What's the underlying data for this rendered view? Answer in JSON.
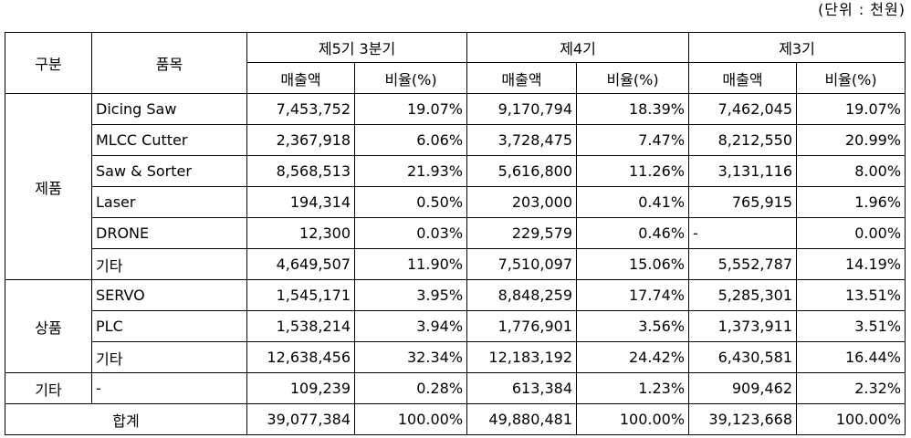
{
  "unit_note": "(단위 : 천원)",
  "headers": {
    "category": "구분",
    "item": "품목",
    "periods": [
      "제5기 3분기",
      "제4기",
      "제3기"
    ],
    "sales": "매출액",
    "ratio": "비율(%)"
  },
  "groups": [
    {
      "name": "제품",
      "rows": [
        {
          "item": "Dicing Saw",
          "cells": [
            "7,453,752",
            "19.07%",
            "9,170,794",
            "18.39%",
            "7,462,045",
            "19.07%"
          ]
        },
        {
          "item": "MLCC Cutter",
          "cells": [
            "2,367,918",
            "6.06%",
            "3,728,475",
            "7.47%",
            "8,212,550",
            "20.99%"
          ]
        },
        {
          "item": "Saw & Sorter",
          "cells": [
            "8,568,513",
            "21.93%",
            "5,616,800",
            "11.26%",
            "3,131,116",
            "8.00%"
          ]
        },
        {
          "item": "Laser",
          "cells": [
            "194,314",
            "0.50%",
            "203,000",
            "0.41%",
            "765,915",
            "1.96%"
          ]
        },
        {
          "item": "DRONE",
          "cells": [
            "12,300",
            "0.03%",
            "229,579",
            "0.46%",
            "-",
            "0.00%"
          ]
        },
        {
          "item": "기타",
          "cells": [
            "4,649,507",
            "11.90%",
            "7,510,097",
            "15.06%",
            "5,552,787",
            "14.19%"
          ]
        }
      ]
    },
    {
      "name": "상품",
      "rows": [
        {
          "item": "SERVO",
          "cells": [
            "1,545,171",
            "3.95%",
            "8,848,259",
            "17.74%",
            "5,285,301",
            "13.51%"
          ]
        },
        {
          "item": "PLC",
          "cells": [
            "1,538,214",
            "3.94%",
            "1,776,901",
            "3.56%",
            "1,373,911",
            "3.51%"
          ]
        },
        {
          "item": "기타",
          "cells": [
            "12,638,456",
            "32.34%",
            "12,183,192",
            "24.42%",
            "6,430,581",
            "16.44%"
          ]
        }
      ]
    },
    {
      "name": "기타",
      "rows": [
        {
          "item": "-",
          "cells": [
            "109,239",
            "0.28%",
            "613,384",
            "1.23%",
            "909,462",
            "2.32%"
          ]
        }
      ]
    }
  ],
  "total": {
    "label": "합계",
    "cells": [
      "39,077,384",
      "100.00%",
      "49,880,481",
      "100.00%",
      "39,123,668",
      "100.00%"
    ]
  }
}
